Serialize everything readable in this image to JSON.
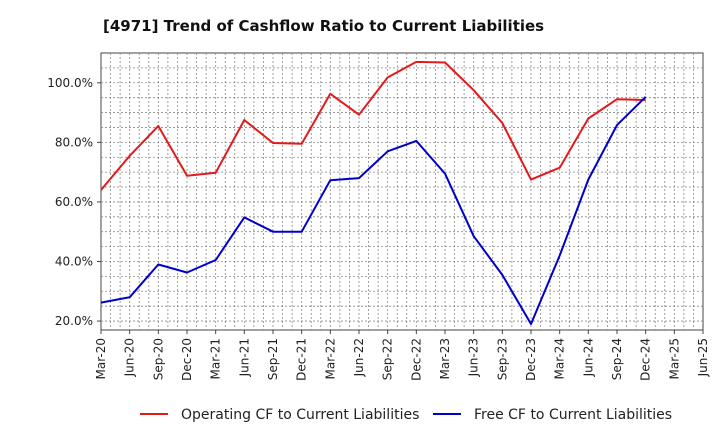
{
  "chart_data": {
    "type": "line",
    "title": "[4971]  Trend of Cashflow Ratio to Current Liabilities",
    "x": [
      "Mar-20",
      "Jun-20",
      "Sep-20",
      "Dec-20",
      "Mar-21",
      "Jun-21",
      "Sep-21",
      "Dec-21",
      "Mar-22",
      "Jun-22",
      "Sep-22",
      "Dec-22",
      "Mar-23",
      "Jun-23",
      "Sep-23",
      "Dec-23",
      "Mar-24",
      "Jun-24",
      "Sep-24",
      "Dec-24",
      "Mar-25",
      "Jun-25"
    ],
    "ylim": [
      17,
      110
    ],
    "yticks": [
      20,
      40,
      60,
      80,
      100
    ],
    "ytick_labels": [
      "20.0%",
      "40.0%",
      "60.0%",
      "80.0%",
      "100.0%"
    ],
    "grid": true,
    "legend_position": "bottom",
    "series": [
      {
        "name": "Operating CF to Current Liabilities",
        "color": "#e31a1c",
        "values": [
          64,
          75.5,
          85.5,
          68.8,
          69.8,
          87.5,
          79.8,
          79.5,
          96.3,
          89.3,
          101.8,
          107,
          106.8,
          97.5,
          86.5,
          67.5,
          71.5,
          88,
          94.5,
          94.2,
          null,
          null
        ]
      },
      {
        "name": "Free CF to Current Liabilities",
        "color": "#0000cc",
        "values": [
          26.2,
          28,
          39,
          36.3,
          40.5,
          54.8,
          50,
          50,
          67.3,
          68,
          77,
          80.5,
          69.5,
          48.5,
          35.5,
          19,
          42,
          67.5,
          85.8,
          95.3,
          null,
          null
        ]
      }
    ]
  }
}
